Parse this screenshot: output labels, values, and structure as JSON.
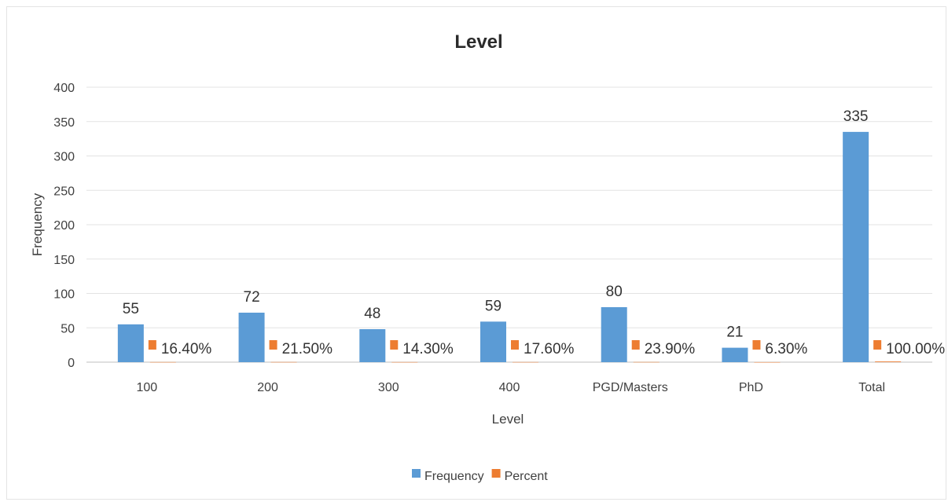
{
  "chart_data": {
    "type": "bar",
    "title": "Level",
    "xlabel": "Level",
    "ylabel": "Frequency",
    "categories": [
      "100",
      "200",
      "300",
      "400",
      "PGD/Masters",
      "PhD",
      "Total"
    ],
    "ylim": [
      0,
      400
    ],
    "yticks": [
      "0",
      "50",
      "100",
      "150",
      "200",
      "250",
      "300",
      "350",
      "400"
    ],
    "grid": true,
    "legend_position": "bottom",
    "series": [
      {
        "name": "Frequency",
        "color": "#5b9bd5",
        "values": [
          55,
          72,
          48,
          59,
          80,
          21,
          335
        ],
        "labels": [
          "55",
          "72",
          "48",
          "59",
          "80",
          "21",
          "335"
        ]
      },
      {
        "name": "Percent",
        "color": "#ed7d31",
        "values": [
          0.164,
          0.215,
          0.143,
          0.176,
          0.239,
          0.063,
          1.0
        ],
        "labels": [
          "16.40%",
          "21.50%",
          "14.30%",
          "17.60%",
          "23.90%",
          "6.30%",
          "100.00%"
        ]
      }
    ]
  }
}
